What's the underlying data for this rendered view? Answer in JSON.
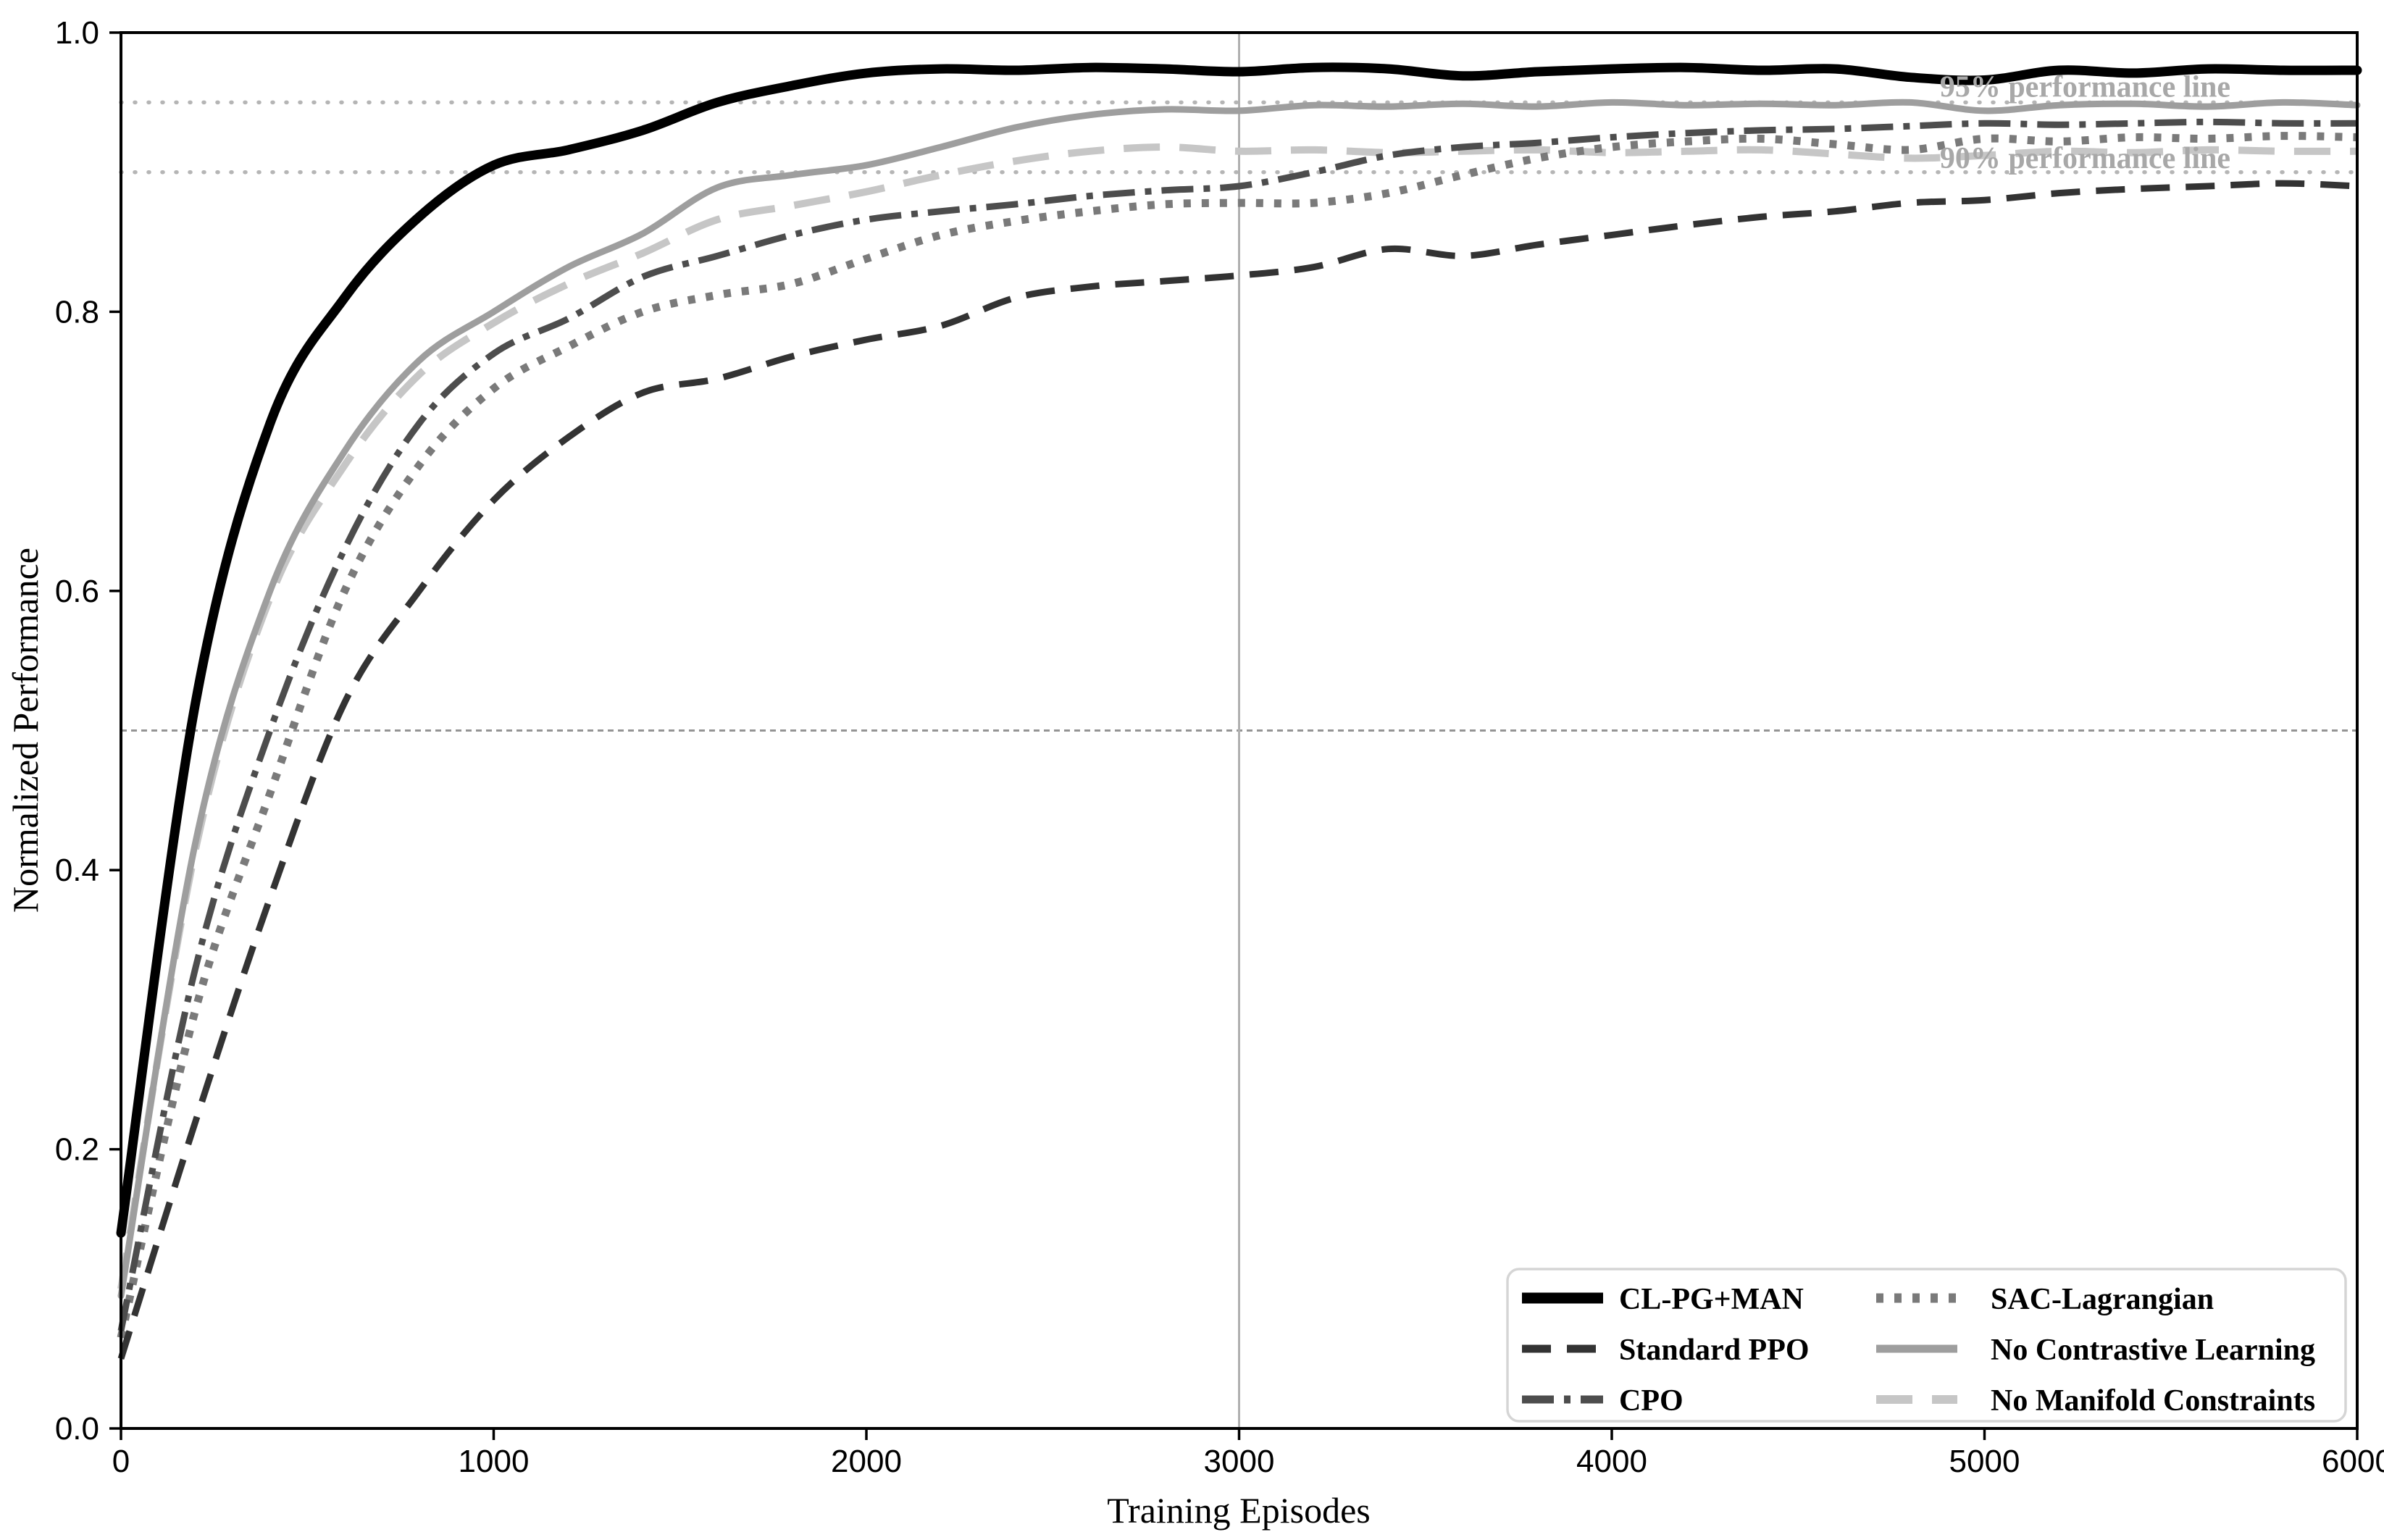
{
  "figure": {
    "background": "#ffffff",
    "axis_color": "#000000"
  },
  "chart_data": {
    "type": "line",
    "title": "",
    "xlabel": "Training Episodes",
    "ylabel": "Normalized Performance",
    "xlim": [
      0,
      6000
    ],
    "ylim": [
      0.0,
      1.0
    ],
    "grid": false,
    "legend_position": "lower right",
    "x_ticks": {
      "values": [
        0,
        1000,
        2000,
        3000,
        4000,
        5000,
        6000
      ],
      "labels": [
        "0",
        "1000",
        "2000",
        "3000",
        "4000",
        "5000",
        "6000"
      ]
    },
    "y_ticks": {
      "values": [
        0.0,
        0.2,
        0.4,
        0.6,
        0.8,
        1.0
      ],
      "labels": [
        "0.0",
        "0.2",
        "0.4",
        "0.6",
        "0.8",
        "1.0"
      ]
    },
    "x": [
      0,
      200,
      400,
      600,
      800,
      1000,
      1200,
      1400,
      1600,
      1800,
      2000,
      2200,
      2400,
      2600,
      2800,
      3000,
      3200,
      3400,
      3600,
      3800,
      4000,
      4200,
      4400,
      4600,
      4800,
      5000,
      5200,
      5400,
      5600,
      5800,
      6000
    ],
    "series": [
      {
        "name": "CL-PG+MAN",
        "color": "#000000",
        "width": 13,
        "dash": "",
        "cap": "round",
        "values": [
          0.14,
          0.52,
          0.72,
          0.81,
          0.868,
          0.905,
          0.916,
          0.93,
          0.95,
          0.962,
          0.971,
          0.974,
          0.973,
          0.975,
          0.974,
          0.972,
          0.975,
          0.974,
          0.969,
          0.972,
          0.974,
          0.975,
          0.973,
          0.974,
          0.968,
          0.966,
          0.973,
          0.971,
          0.974,
          0.973,
          0.973
        ]
      },
      {
        "name": "Standard PPO",
        "color": "#333333",
        "width": 9,
        "dash": "40 22",
        "cap": "butt",
        "values": [
          0.05,
          0.22,
          0.38,
          0.52,
          0.6,
          0.665,
          0.71,
          0.742,
          0.752,
          0.768,
          0.78,
          0.79,
          0.81,
          0.818,
          0.822,
          0.826,
          0.832,
          0.845,
          0.84,
          0.848,
          0.855,
          0.862,
          0.868,
          0.872,
          0.878,
          0.88,
          0.885,
          0.888,
          0.89,
          0.892,
          0.89
        ]
      },
      {
        "name": "CPO",
        "color": "#4d4d4d",
        "width": 9,
        "dash": "44 14 9 14",
        "cap": "butt",
        "values": [
          0.07,
          0.33,
          0.5,
          0.63,
          0.72,
          0.77,
          0.795,
          0.825,
          0.84,
          0.855,
          0.866,
          0.872,
          0.877,
          0.883,
          0.887,
          0.89,
          0.9,
          0.912,
          0.918,
          0.921,
          0.925,
          0.928,
          0.93,
          0.931,
          0.933,
          0.935,
          0.934,
          0.935,
          0.936,
          0.935,
          0.935
        ]
      },
      {
        "name": "SAC-Lagrangian",
        "color": "#7a7a7a",
        "width": 11,
        "dash": "10 15",
        "cap": "butt",
        "values": [
          0.065,
          0.3,
          0.455,
          0.6,
          0.69,
          0.745,
          0.775,
          0.8,
          0.812,
          0.82,
          0.838,
          0.855,
          0.865,
          0.872,
          0.877,
          0.878,
          0.878,
          0.885,
          0.898,
          0.91,
          0.918,
          0.922,
          0.924,
          0.92,
          0.916,
          0.924,
          0.922,
          0.925,
          0.924,
          0.926,
          0.925
        ]
      },
      {
        "name": "No Contrastive Learning",
        "color": "#9e9e9e",
        "width": 9,
        "dash": "",
        "cap": "round",
        "values": [
          0.095,
          0.42,
          0.6,
          0.7,
          0.765,
          0.8,
          0.832,
          0.856,
          0.889,
          0.898,
          0.905,
          0.918,
          0.932,
          0.941,
          0.945,
          0.944,
          0.948,
          0.947,
          0.949,
          0.947,
          0.95,
          0.948,
          0.949,
          0.948,
          0.95,
          0.944,
          0.948,
          0.949,
          0.947,
          0.95,
          0.948
        ]
      },
      {
        "name": "No Manifold Constraints",
        "color": "#c6c6c6",
        "width": 10,
        "dash": "50 27",
        "cap": "butt",
        "values": [
          0.1,
          0.415,
          0.595,
          0.69,
          0.755,
          0.792,
          0.82,
          0.842,
          0.866,
          0.876,
          0.886,
          0.898,
          0.908,
          0.915,
          0.918,
          0.915,
          0.916,
          0.914,
          0.915,
          0.916,
          0.914,
          0.915,
          0.916,
          0.913,
          0.91,
          0.912,
          0.915,
          0.914,
          0.916,
          0.915,
          0.915
        ]
      }
    ],
    "reference_lines": [
      {
        "orientation": "horizontal",
        "value": 0.95,
        "color": "#b5b5b5",
        "width": 5.5,
        "dash": "1 18",
        "cap": "round",
        "name": "95-percent-line"
      },
      {
        "orientation": "horizontal",
        "value": 0.9,
        "color": "#b5b5b5",
        "width": 5.5,
        "dash": "1 18",
        "cap": "round",
        "name": "90-percent-line"
      },
      {
        "orientation": "horizontal",
        "value": 0.5,
        "color": "#949494",
        "width": 3,
        "dash": "8 6",
        "cap": "butt",
        "name": "mid-line"
      },
      {
        "orientation": "vertical",
        "value": 3000,
        "color": "#b0b0b0",
        "width": 3,
        "dash": "",
        "cap": "butt",
        "name": "episode-3000-line"
      }
    ],
    "annotations": [
      {
        "text": "95% performance line",
        "x": 5660,
        "y": 0.954,
        "anchor": "end",
        "color": "#a8a8a8"
      },
      {
        "text": "90% performance line",
        "x": 5660,
        "y": 0.903,
        "anchor": "end",
        "color": "#a8a8a8"
      }
    ]
  },
  "legend": {
    "columns": 2,
    "border_color": "#d5d5d5",
    "background": "#ffffff",
    "entries": [
      "CL-PG+MAN",
      "Standard PPO",
      "CPO",
      "SAC-Lagrangian",
      "No Contrastive Learning",
      "No Manifold Constraints"
    ]
  }
}
